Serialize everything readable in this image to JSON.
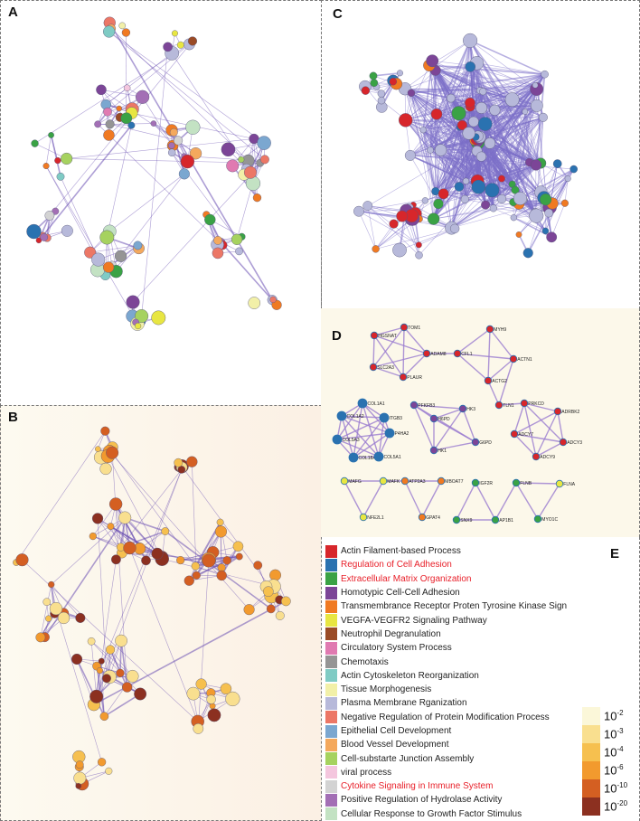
{
  "panels": {
    "a": "A",
    "b": "B",
    "c": "C",
    "d": "D",
    "e": "E"
  },
  "panel_d": {
    "nodes": [
      {
        "id": "TOM1",
        "color": "#d7262b"
      },
      {
        "id": "HGSNAT",
        "color": "#d7262b"
      },
      {
        "id": "ADAM8",
        "color": "#d7262b"
      },
      {
        "id": "SLC2A3",
        "color": "#d7262b"
      },
      {
        "id": "PLAUR",
        "color": "#d7262b"
      },
      {
        "id": "CFL1",
        "color": "#d7262b"
      },
      {
        "id": "MYH9",
        "color": "#d7262b"
      },
      {
        "id": "ACTN1",
        "color": "#d7262b"
      },
      {
        "id": "ACTG2",
        "color": "#d7262b"
      },
      {
        "id": "TLN1",
        "color": "#d7262b"
      },
      {
        "id": "PRKCD",
        "color": "#d7262b"
      },
      {
        "id": "ADRBK2",
        "color": "#d7262b"
      },
      {
        "id": "ADCY7",
        "color": "#d7262b"
      },
      {
        "id": "ADCY3",
        "color": "#d7262b"
      },
      {
        "id": "ADCY9",
        "color": "#d7262b"
      },
      {
        "id": "COL1A1",
        "color": "#2a72b0"
      },
      {
        "id": "COL1A2",
        "color": "#2a72b0"
      },
      {
        "id": "ITGB3",
        "color": "#2a72b0"
      },
      {
        "id": "P4HA2",
        "color": "#2a72b0"
      },
      {
        "id": "COL5A3",
        "color": "#2a72b0"
      },
      {
        "id": "COL18A1",
        "color": "#2a72b0"
      },
      {
        "id": "COL5A1",
        "color": "#2a72b0"
      },
      {
        "id": "PFKFB3",
        "color": "#7c4597"
      },
      {
        "id": "HK3",
        "color": "#7c4597"
      },
      {
        "id": "H6PD",
        "color": "#7c4597"
      },
      {
        "id": "G6PD",
        "color": "#7c4597"
      },
      {
        "id": "HK1",
        "color": "#7c4597"
      },
      {
        "id": "MAFG",
        "color": "#e8e642"
      },
      {
        "id": "MAFK",
        "color": "#e8e642"
      },
      {
        "id": "NFE2L1",
        "color": "#e8e642"
      },
      {
        "id": "ATP2A3",
        "color": "#f07a22"
      },
      {
        "id": "MBOAT7",
        "color": "#f07a22"
      },
      {
        "id": "GPAT4",
        "color": "#f07a22"
      },
      {
        "id": "IGF2R",
        "color": "#3aa245"
      },
      {
        "id": "SNX9",
        "color": "#3aa245"
      },
      {
        "id": "AP1B1",
        "color": "#3aa245"
      },
      {
        "id": "FLNB",
        "color": "#3aa245"
      },
      {
        "id": "FLNA",
        "color": "#e8e642"
      },
      {
        "id": "MYO1C",
        "color": "#3aa245"
      }
    ]
  },
  "legend": [
    {
      "label": "Actin Filament-based Process",
      "color": "#d7262b",
      "highlight": false
    },
    {
      "label": "Regulation of Cell Adhesion",
      "color": "#2a72b0",
      "highlight": true
    },
    {
      "label": "Extracellular Matrix Organization",
      "color": "#3aa245",
      "highlight": true
    },
    {
      "label": "Homotypic Cell-Cell Adhesion",
      "color": "#7c4597",
      "highlight": false
    },
    {
      "label": "Transmembrance Receptor Proten Tyrosine Kinase Sign",
      "color": "#f07a22",
      "highlight": false
    },
    {
      "label": "VEGFA-VEGFR2 Signaling Pathway",
      "color": "#e8e642",
      "highlight": false
    },
    {
      "label": "Neutrophil Degranulation",
      "color": "#9a4b26",
      "highlight": false
    },
    {
      "label": "Circulatory System Process",
      "color": "#e07ab1",
      "highlight": false
    },
    {
      "label": "Chemotaxis",
      "color": "#959595",
      "highlight": false
    },
    {
      "label": "Actin Cytoskeleton Reorganization",
      "color": "#7fcbc4",
      "highlight": false
    },
    {
      "label": "Tissue Morphogenesis",
      "color": "#f2f0a8",
      "highlight": false
    },
    {
      "label": "Plasma Membrane Rganization",
      "color": "#b7b9da",
      "highlight": false
    },
    {
      "label": "Negative Regulation of Protein Modification Process",
      "color": "#ec7766",
      "highlight": false
    },
    {
      "label": "Epithelial Cell Development",
      "color": "#7ba7d0",
      "highlight": false
    },
    {
      "label": "Blood Vessel Development",
      "color": "#f4a95d",
      "highlight": false
    },
    {
      "label": "Cell-substarte Junction Assembly",
      "color": "#a6d25f",
      "highlight": false
    },
    {
      "label": "viral process",
      "color": "#f4c6de",
      "highlight": false
    },
    {
      "label": "Cytokine Signaling in Immune System",
      "color": "#d3d3d3",
      "highlight": true
    },
    {
      "label": "Positive Regulation of Hydrolase Activity",
      "color": "#a36fb5",
      "highlight": false
    },
    {
      "label": "Cellular Response to Growth Factor Stimulus",
      "color": "#c3e2c3",
      "highlight": false
    }
  ],
  "pvalue_scale": [
    {
      "base": "10",
      "exp": "-2",
      "color": "#fbf7d9"
    },
    {
      "base": "10",
      "exp": "-3",
      "color": "#f9df8f"
    },
    {
      "base": "10",
      "exp": "-4",
      "color": "#f6c04f"
    },
    {
      "base": "10",
      "exp": "-6",
      "color": "#f29a2e"
    },
    {
      "base": "10",
      "exp": "-10",
      "color": "#d45f22"
    },
    {
      "base": "10",
      "exp": "-20",
      "color": "#8c3020"
    }
  ]
}
